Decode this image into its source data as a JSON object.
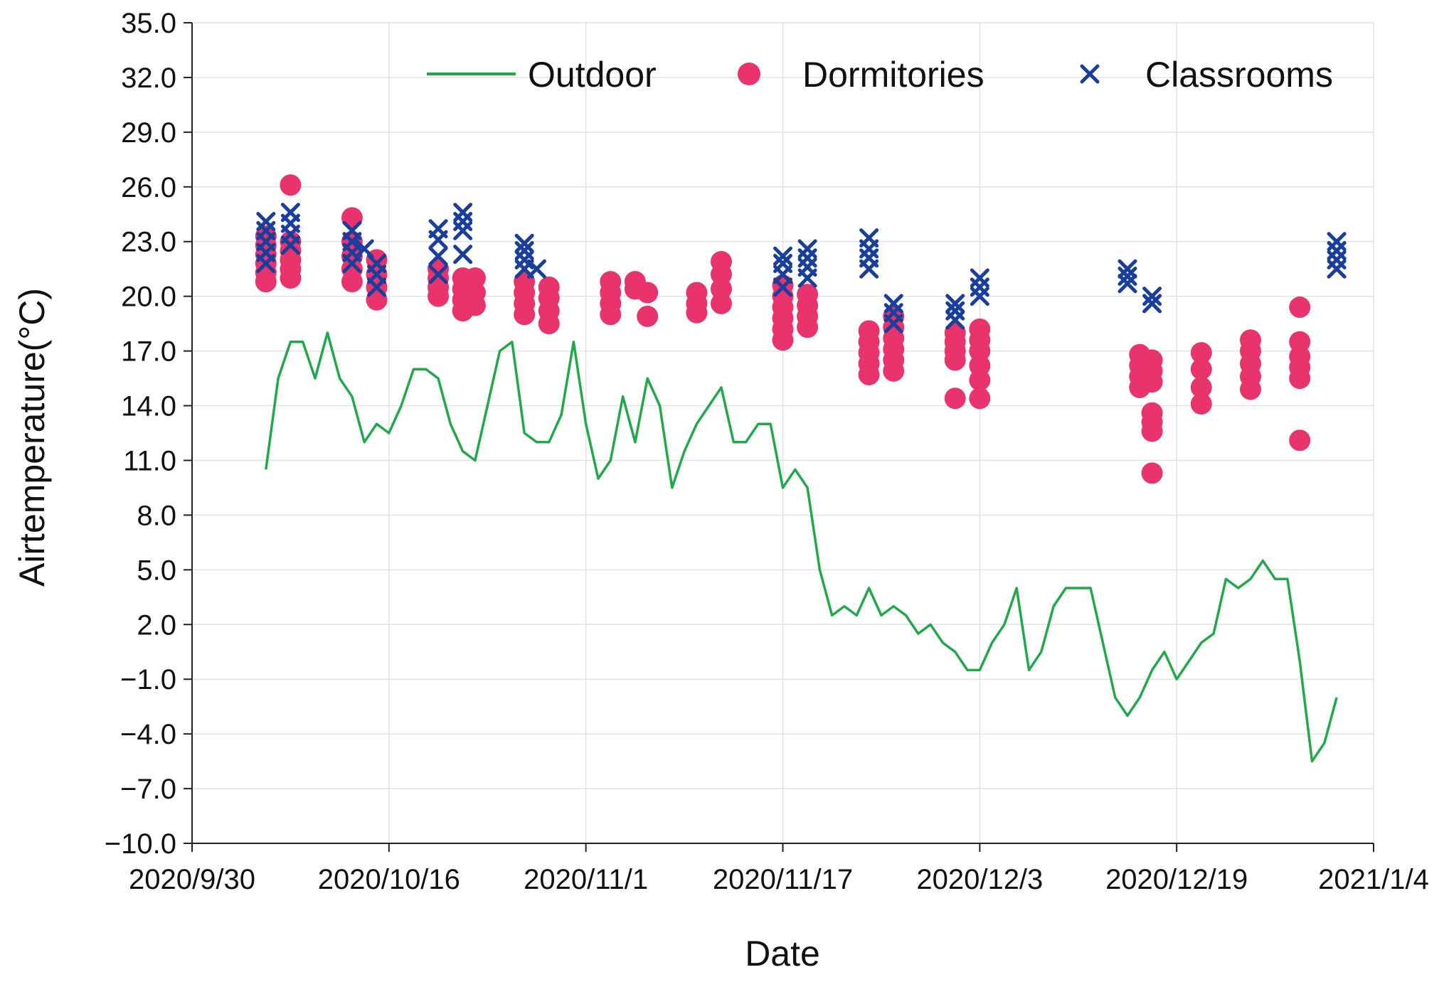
{
  "chart_data": {
    "type": "scatter",
    "title": "",
    "xlabel": "Date",
    "ylabel": "Airtemperature(°C)",
    "x_unit": "days since 2020/9/30",
    "xlim": [
      0,
      96
    ],
    "ylim": [
      -10,
      35
    ],
    "grid": true,
    "legend_position": "top-right",
    "x_ticks": [
      {
        "value": 0,
        "label": "2020/9/30"
      },
      {
        "value": 16,
        "label": "2020/10/16"
      },
      {
        "value": 32,
        "label": "2020/11/1"
      },
      {
        "value": 48,
        "label": "2020/11/17"
      },
      {
        "value": 64,
        "label": "2020/12/3"
      },
      {
        "value": 80,
        "label": "2020/12/19"
      },
      {
        "value": 96,
        "label": "2021/1/4"
      }
    ],
    "y_ticks": [
      {
        "value": 35,
        "label": "35.0"
      },
      {
        "value": 32,
        "label": "32.0"
      },
      {
        "value": 29,
        "label": "29.0"
      },
      {
        "value": 26,
        "label": "26.0"
      },
      {
        "value": 23,
        "label": "23.0"
      },
      {
        "value": 20,
        "label": "20.0"
      },
      {
        "value": 17,
        "label": "17.0"
      },
      {
        "value": 14,
        "label": "14.0"
      },
      {
        "value": 11,
        "label": "11.0"
      },
      {
        "value": 8,
        "label": "8.0"
      },
      {
        "value": 5,
        "label": "5.0"
      },
      {
        "value": 2,
        "label": "2.0"
      },
      {
        "value": -1,
        "label": "−1.0"
      },
      {
        "value": -4,
        "label": "−4.0"
      },
      {
        "value": -7,
        "label": "−7.0"
      },
      {
        "value": -10,
        "label": "−10.0"
      }
    ],
    "series": [
      {
        "name": "Outdoor",
        "kind": "line",
        "color": "#22a84a",
        "points": [
          [
            6,
            10.5
          ],
          [
            7,
            15.5
          ],
          [
            8,
            17.5
          ],
          [
            9,
            17.5
          ],
          [
            10,
            15.5
          ],
          [
            11,
            18
          ],
          [
            12,
            15.5
          ],
          [
            13,
            14.5
          ],
          [
            14,
            12
          ],
          [
            15,
            13
          ],
          [
            16,
            12.5
          ],
          [
            17,
            14
          ],
          [
            18,
            16
          ],
          [
            19,
            16
          ],
          [
            20,
            15.5
          ],
          [
            21,
            13
          ],
          [
            22,
            11.5
          ],
          [
            23,
            11
          ],
          [
            24,
            14
          ],
          [
            25,
            17
          ],
          [
            26,
            17.5
          ],
          [
            27,
            12.5
          ],
          [
            28,
            12
          ],
          [
            29,
            12
          ],
          [
            30,
            13.5
          ],
          [
            31,
            17.5
          ],
          [
            32,
            13
          ],
          [
            33,
            10
          ],
          [
            34,
            11
          ],
          [
            35,
            14.5
          ],
          [
            36,
            12
          ],
          [
            37,
            15.5
          ],
          [
            38,
            14
          ],
          [
            39,
            9.5
          ],
          [
            40,
            11.5
          ],
          [
            41,
            13
          ],
          [
            42,
            14
          ],
          [
            43,
            15
          ],
          [
            44,
            12
          ],
          [
            45,
            12
          ],
          [
            46,
            13
          ],
          [
            47,
            13
          ],
          [
            48,
            9.5
          ],
          [
            49,
            10.5
          ],
          [
            50,
            9.5
          ],
          [
            51,
            5
          ],
          [
            52,
            2.5
          ],
          [
            53,
            3
          ],
          [
            54,
            2.5
          ],
          [
            55,
            4
          ],
          [
            56,
            2.5
          ],
          [
            57,
            3
          ],
          [
            58,
            2.5
          ],
          [
            59,
            1.5
          ],
          [
            60,
            2
          ],
          [
            61,
            1
          ],
          [
            62,
            0.5
          ],
          [
            63,
            -0.5
          ],
          [
            64,
            -0.5
          ],
          [
            65,
            1
          ],
          [
            66,
            2
          ],
          [
            67,
            4
          ],
          [
            68,
            -0.5
          ],
          [
            69,
            0.5
          ],
          [
            70,
            3
          ],
          [
            71,
            4
          ],
          [
            72,
            4
          ],
          [
            73,
            4
          ],
          [
            74,
            1
          ],
          [
            75,
            -2
          ],
          [
            76,
            -3
          ],
          [
            77,
            -2
          ],
          [
            78,
            -0.5
          ],
          [
            79,
            0.5
          ],
          [
            80,
            -1
          ],
          [
            81,
            0
          ],
          [
            82,
            1
          ],
          [
            83,
            1.5
          ],
          [
            84,
            4.5
          ],
          [
            85,
            4
          ],
          [
            86,
            4.5
          ],
          [
            87,
            5.5
          ],
          [
            88,
            4.5
          ],
          [
            89,
            4.5
          ],
          [
            90,
            0
          ],
          [
            91,
            -5.5
          ],
          [
            92,
            -4.5
          ],
          [
            93,
            -2
          ]
        ]
      },
      {
        "name": "Dormitories",
        "kind": "marker-circle",
        "color": "#e8336d",
        "points": [
          [
            6,
            20.8
          ],
          [
            6,
            21.3
          ],
          [
            6,
            21.8
          ],
          [
            6,
            22.3
          ],
          [
            6,
            22.8
          ],
          [
            6,
            23.3
          ],
          [
            8,
            21
          ],
          [
            8,
            21.5
          ],
          [
            8,
            22
          ],
          [
            8,
            22.5
          ],
          [
            8,
            23
          ],
          [
            8,
            26.1
          ],
          [
            13,
            20.8
          ],
          [
            13,
            21.5
          ],
          [
            13,
            22.2
          ],
          [
            13,
            23
          ],
          [
            13,
            24.3
          ],
          [
            15,
            19.8
          ],
          [
            15,
            20.5
          ],
          [
            15,
            21.2
          ],
          [
            15,
            22
          ],
          [
            20,
            20
          ],
          [
            20,
            20.5
          ],
          [
            20,
            21
          ],
          [
            20,
            21.5
          ],
          [
            22,
            19.2
          ],
          [
            22,
            19.8
          ],
          [
            22,
            20.4
          ],
          [
            22,
            21
          ],
          [
            23,
            19.5
          ],
          [
            23,
            20.2
          ],
          [
            23,
            21
          ],
          [
            27,
            19
          ],
          [
            27,
            19.6
          ],
          [
            27,
            20.2
          ],
          [
            27,
            20.8
          ],
          [
            29,
            18.5
          ],
          [
            29,
            19.2
          ],
          [
            29,
            19.9
          ],
          [
            29,
            20.5
          ],
          [
            34,
            19
          ],
          [
            34,
            19.6
          ],
          [
            34,
            20.2
          ],
          [
            34,
            20.8
          ],
          [
            36,
            20.4
          ],
          [
            36,
            20.8
          ],
          [
            37,
            18.9
          ],
          [
            37,
            20.2
          ],
          [
            41,
            19.1
          ],
          [
            41,
            19.6
          ],
          [
            41,
            20.2
          ],
          [
            43,
            19.6
          ],
          [
            43,
            20.4
          ],
          [
            43,
            21.2
          ],
          [
            43,
            21.9
          ],
          [
            48,
            17.6
          ],
          [
            48,
            18.2
          ],
          [
            48,
            18.8
          ],
          [
            48,
            19.4
          ],
          [
            48,
            20
          ],
          [
            48,
            20.6
          ],
          [
            50,
            18.3
          ],
          [
            50,
            18.9
          ],
          [
            50,
            19.5
          ],
          [
            50,
            20.1
          ],
          [
            55,
            15.7
          ],
          [
            55,
            16.3
          ],
          [
            55,
            16.9
          ],
          [
            55,
            17.5
          ],
          [
            55,
            18.1
          ],
          [
            57,
            15.9
          ],
          [
            57,
            16.5
          ],
          [
            57,
            17.1
          ],
          [
            57,
            17.7
          ],
          [
            57,
            18.3
          ],
          [
            57,
            18.9
          ],
          [
            62,
            14.4
          ],
          [
            62,
            16.5
          ],
          [
            62,
            17
          ],
          [
            62,
            17.5
          ],
          [
            62,
            18
          ],
          [
            64,
            14.4
          ],
          [
            64,
            15.4
          ],
          [
            64,
            16.2
          ],
          [
            64,
            17
          ],
          [
            64,
            17.6
          ],
          [
            64,
            18.2
          ],
          [
            77,
            15
          ],
          [
            77,
            15.6
          ],
          [
            77,
            16.2
          ],
          [
            77,
            16.8
          ],
          [
            78,
            10.3
          ],
          [
            78,
            12.6
          ],
          [
            78,
            13.1
          ],
          [
            78,
            13.6
          ],
          [
            78,
            15.3
          ],
          [
            78,
            15.9
          ],
          [
            78,
            16.5
          ],
          [
            82,
            14.1
          ],
          [
            82,
            15
          ],
          [
            82,
            16
          ],
          [
            82,
            16.9
          ],
          [
            86,
            14.9
          ],
          [
            86,
            15.6
          ],
          [
            86,
            16.3
          ],
          [
            86,
            17
          ],
          [
            86,
            17.6
          ],
          [
            90,
            12.1
          ],
          [
            90,
            15.5
          ],
          [
            90,
            16.1
          ],
          [
            90,
            16.7
          ],
          [
            90,
            17.5
          ],
          [
            90,
            19.4
          ]
        ]
      },
      {
        "name": "Classrooms",
        "kind": "marker-x",
        "color": "#1a3e9c",
        "points": [
          [
            6,
            21.8
          ],
          [
            6,
            22.4
          ],
          [
            6,
            23
          ],
          [
            6,
            23.6
          ],
          [
            6,
            24.1
          ],
          [
            8,
            22.8
          ],
          [
            8,
            23.4
          ],
          [
            8,
            24
          ],
          [
            8,
            24.6
          ],
          [
            13,
            21.8
          ],
          [
            13,
            22.4
          ],
          [
            13,
            23
          ],
          [
            13,
            23.6
          ],
          [
            14,
            22.6
          ],
          [
            15,
            20.5
          ],
          [
            15,
            21.2
          ],
          [
            15,
            21.8
          ],
          [
            20,
            21.2
          ],
          [
            20,
            22.2
          ],
          [
            20,
            23.1
          ],
          [
            20,
            23.7
          ],
          [
            22,
            22.3
          ],
          [
            22,
            23.6
          ],
          [
            22,
            24.1
          ],
          [
            22,
            24.6
          ],
          [
            27,
            21.5
          ],
          [
            27,
            22
          ],
          [
            27,
            22.5
          ],
          [
            27,
            22.9
          ],
          [
            28,
            21.5
          ],
          [
            48,
            20.5
          ],
          [
            48,
            21.2
          ],
          [
            48,
            21.8
          ],
          [
            48,
            22.2
          ],
          [
            50,
            21
          ],
          [
            50,
            21.6
          ],
          [
            50,
            22.1
          ],
          [
            50,
            22.6
          ],
          [
            55,
            21.5
          ],
          [
            55,
            22.1
          ],
          [
            55,
            22.6
          ],
          [
            55,
            23.2
          ],
          [
            57,
            18.5
          ],
          [
            57,
            19.1
          ],
          [
            57,
            19.6
          ],
          [
            62,
            18.7
          ],
          [
            62,
            19.2
          ],
          [
            62,
            19.6
          ],
          [
            64,
            20
          ],
          [
            64,
            20.5
          ],
          [
            64,
            21
          ],
          [
            76,
            20.7
          ],
          [
            76,
            21.1
          ],
          [
            76,
            21.5
          ],
          [
            78,
            19.6
          ],
          [
            78,
            20
          ],
          [
            93,
            21.5
          ],
          [
            93,
            22
          ],
          [
            93,
            22.5
          ],
          [
            93,
            23
          ]
        ]
      }
    ]
  }
}
